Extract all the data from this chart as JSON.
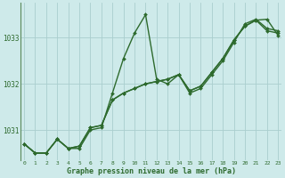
{
  "xlabel": "Graphe pression niveau de la mer (hPa)",
  "hours": [
    0,
    1,
    2,
    3,
    4,
    5,
    6,
    7,
    8,
    9,
    10,
    11,
    12,
    13,
    14,
    15,
    16,
    17,
    18,
    19,
    20,
    21,
    22,
    23
  ],
  "series1": [
    1030.7,
    1030.5,
    1030.5,
    1030.8,
    1030.6,
    1030.6,
    1031.0,
    1031.05,
    1031.8,
    1032.55,
    1033.1,
    1033.5,
    1032.1,
    1032.0,
    1032.2,
    1031.8,
    1031.9,
    1032.2,
    1032.5,
    1032.9,
    1033.3,
    1033.4,
    1033.2,
    1033.15
  ],
  "series2": [
    1030.7,
    1030.5,
    1030.5,
    1030.8,
    1030.6,
    1030.65,
    1031.05,
    1031.1,
    1031.65,
    1031.8,
    1031.9,
    1032.0,
    1032.05,
    1032.1,
    1032.2,
    1031.85,
    1031.95,
    1032.25,
    1032.55,
    1032.95,
    1033.25,
    1033.38,
    1033.15,
    1033.1
  ],
  "series3": [
    1030.7,
    1030.5,
    1030.5,
    1030.8,
    1030.6,
    1030.65,
    1031.05,
    1031.1,
    1031.65,
    1031.8,
    1031.9,
    1032.0,
    1032.05,
    1032.1,
    1032.2,
    1031.85,
    1031.95,
    1032.25,
    1032.55,
    1032.95,
    1033.25,
    1033.38,
    1033.4,
    1033.05
  ],
  "ylim": [
    1030.35,
    1033.75
  ],
  "yticks": [
    1031,
    1032,
    1033
  ],
  "xticks": [
    0,
    1,
    2,
    3,
    4,
    5,
    6,
    7,
    8,
    9,
    10,
    11,
    12,
    13,
    14,
    15,
    16,
    17,
    18,
    19,
    20,
    21,
    22,
    23
  ],
  "line_color": "#2d6a2d",
  "bg_color": "#ceeaea",
  "grid_color": "#aacece",
  "tick_color": "#2d6a2d",
  "label_color": "#2d6a2d",
  "marker_size": 2.0,
  "line_width": 1.0,
  "left_spine_color": "#5a8a5a"
}
